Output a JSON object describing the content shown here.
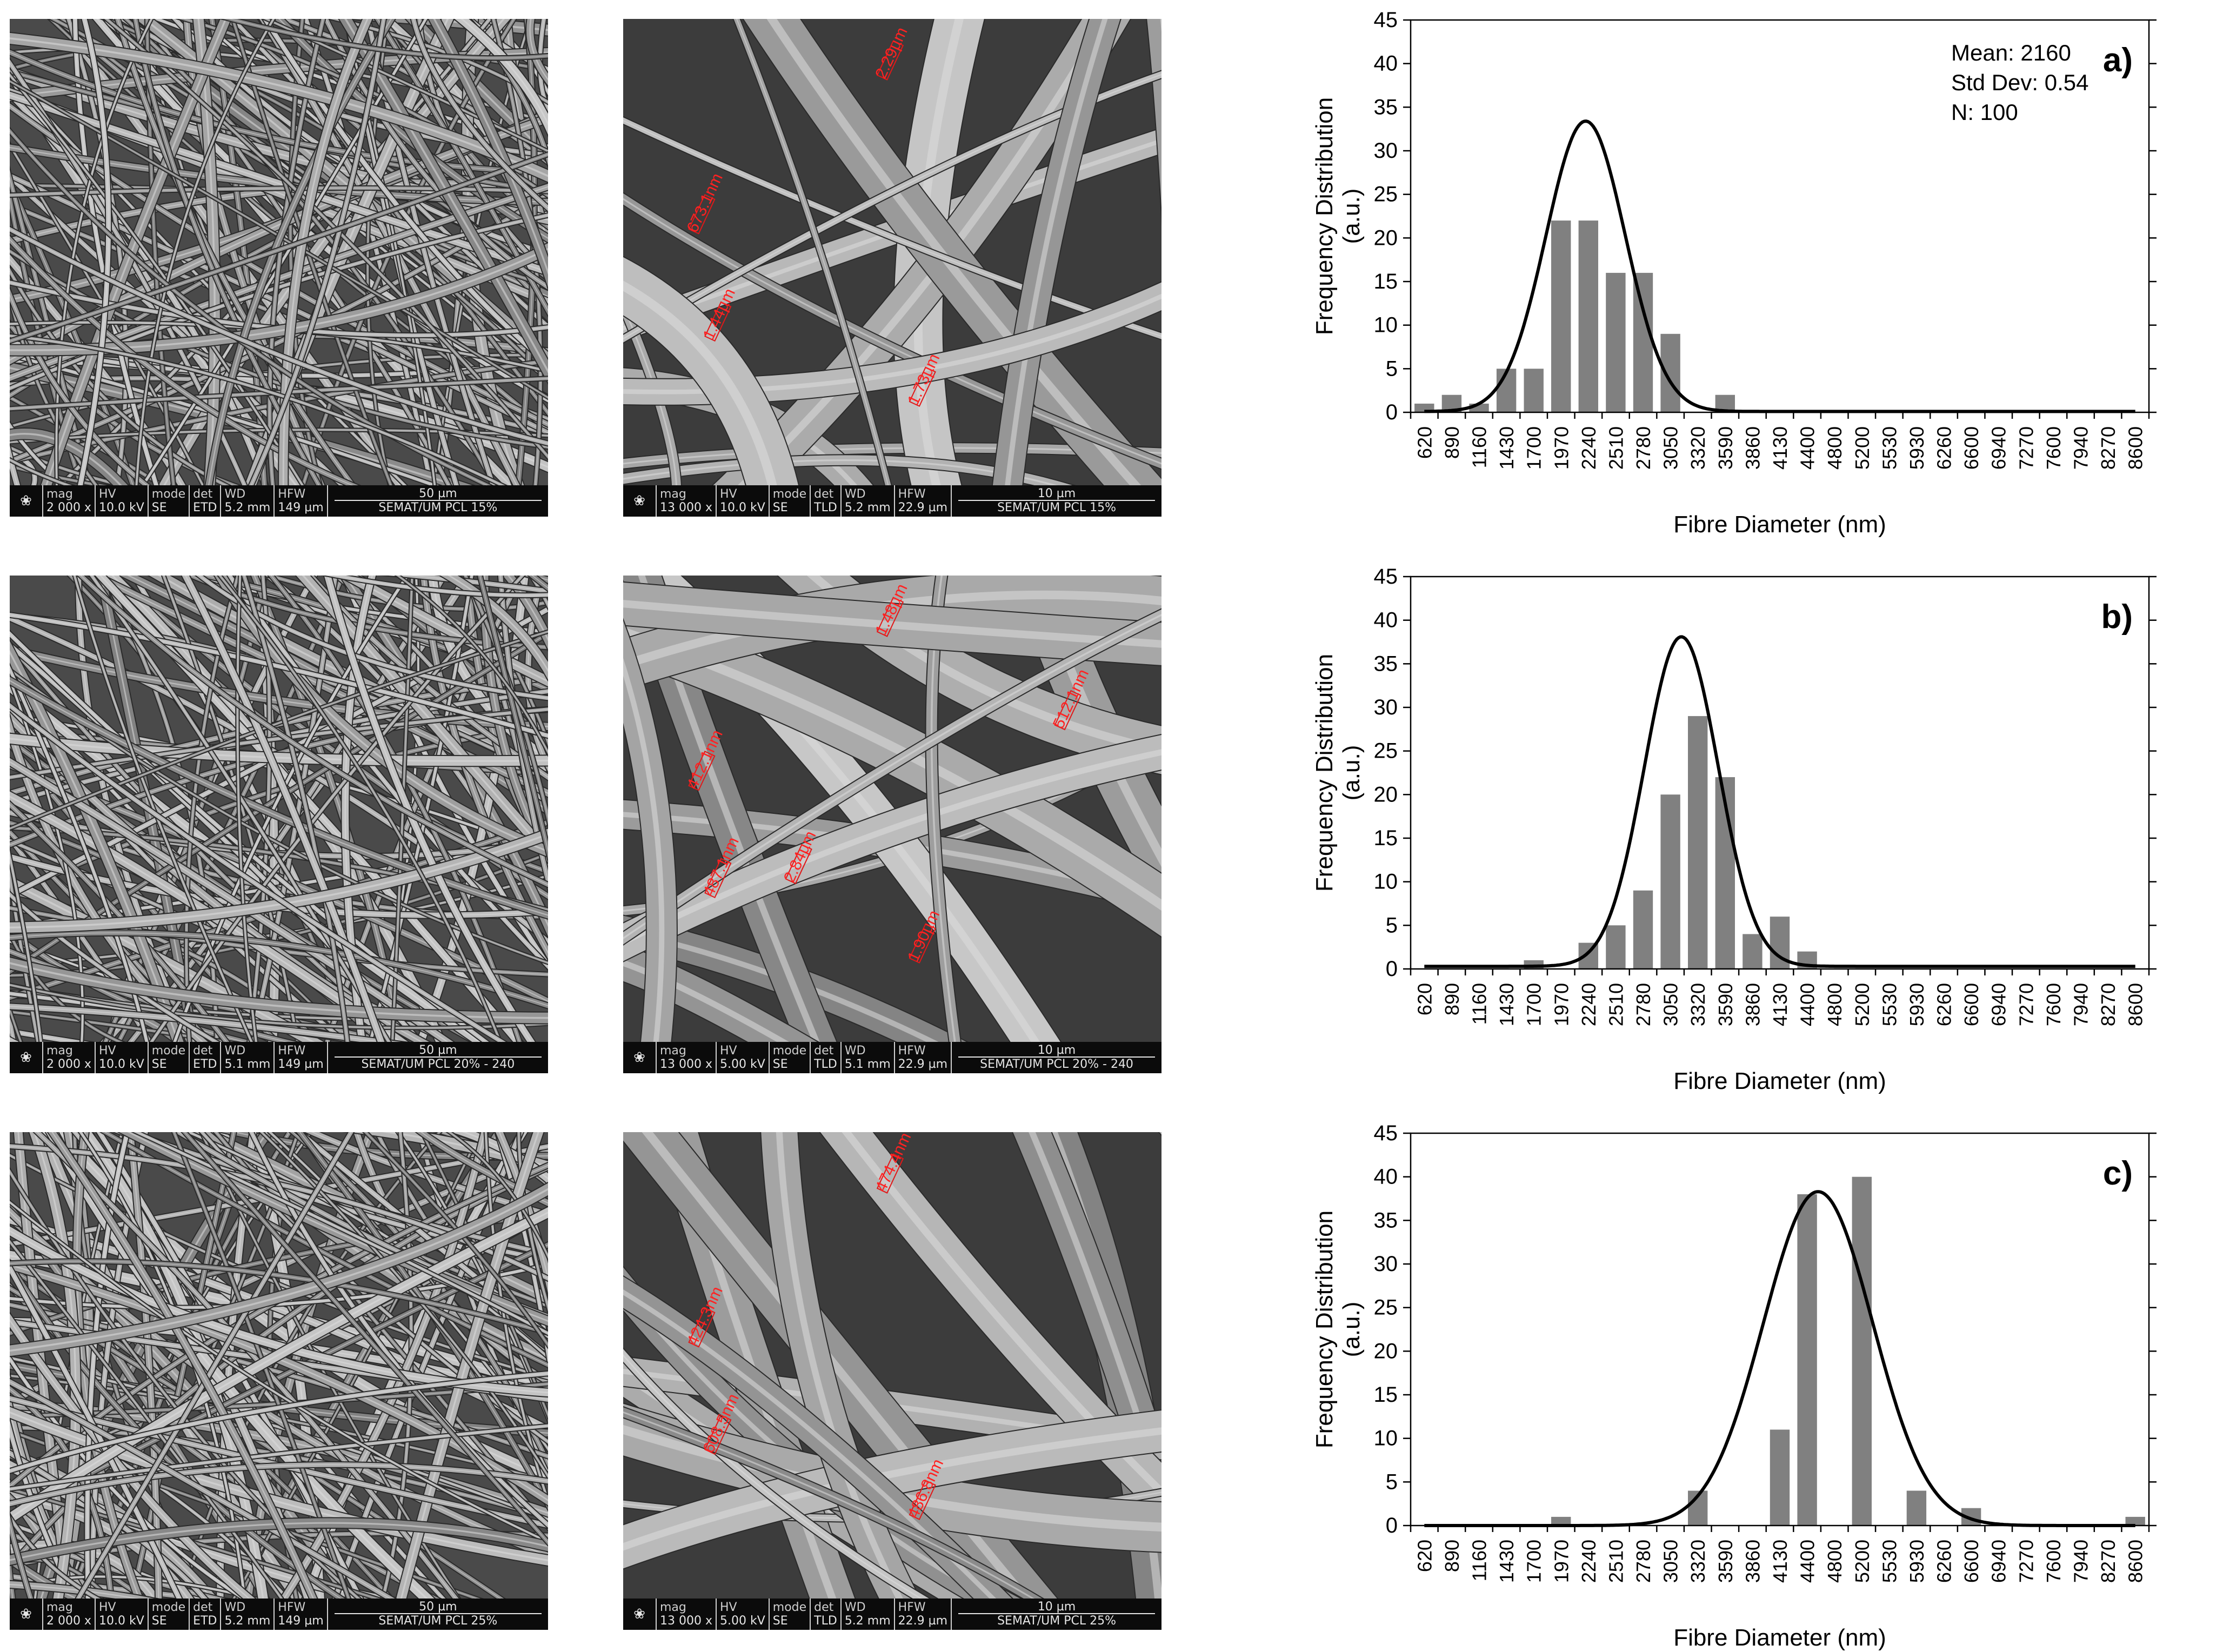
{
  "images": [
    {
      "mag": "2 000 x",
      "hv": "10.0 kV",
      "mode": "SE",
      "det": "ETD",
      "wd": "5.2 mm",
      "hfw": "149 µm",
      "scale": "50 µm",
      "label": "SEMAT/UM PCL 15%"
    },
    {
      "mag": "13 000 x",
      "hv": "10.0 kV",
      "mode": "SE",
      "det": "TLD",
      "wd": "5.2 mm",
      "hfw": "22.9 µm",
      "scale": "10 µm",
      "label": "SEMAT/UM PCL 15%",
      "measurements": [
        "2.29µm",
        "673.1nm",
        "1.44µm",
        "1.73µm"
      ]
    },
    {
      "mag": "2 000 x",
      "hv": "10.0 kV",
      "mode": "SE",
      "det": "ETD",
      "wd": "5.1 mm",
      "hfw": "149 µm",
      "scale": "50 µm",
      "label": "SEMAT/UM PCL 20% - 240"
    },
    {
      "mag": "13 000 x",
      "hv": "5.00 kV",
      "mode": "SE",
      "det": "TLD",
      "wd": "5.1 mm",
      "hfw": "22.9 µm",
      "scale": "10 µm",
      "label": "SEMAT/UM PCL 20% - 240",
      "measurements": [
        "1.48µm",
        "412.1nm",
        "487.1nm",
        "1.90µm",
        "512.1nm",
        "2.84µm"
      ]
    },
    {
      "mag": "2 000 x",
      "hv": "10.0 kV",
      "mode": "SE",
      "det": "ETD",
      "wd": "5.2 mm",
      "hfw": "149 µm",
      "scale": "50 µm",
      "label": "SEMAT/UM PCL 25%"
    },
    {
      "mag": "13 000 x",
      "hv": "5.00 kV",
      "mode": "SE",
      "det": "TLD",
      "wd": "5.2 mm",
      "hfw": "22.9 µm",
      "scale": "10 µm",
      "label": "SEMAT/UM PCL 25%",
      "measurements": [
        "474.4nm",
        "424.3nm",
        "608.5nm",
        "486.8nm"
      ]
    }
  ],
  "databar_labels": {
    "mag": "mag",
    "hv": "HV",
    "mode": "mode",
    "det": "det",
    "wd": "WD",
    "hfw": "HFW"
  },
  "chart_data": [
    {
      "type": "bar",
      "panel_label": "a)",
      "xlabel": "Fibre Diameter (nm)",
      "ylabel": "Frequency Distribution (a.u.)",
      "ylim": [
        0,
        45
      ],
      "yticks": [
        0,
        5,
        10,
        15,
        20,
        25,
        30,
        35,
        40,
        45
      ],
      "categories": [
        "620",
        "890",
        "1160",
        "1430",
        "1700",
        "1970",
        "2240",
        "2510",
        "2780",
        "3050",
        "3320",
        "3590",
        "3860",
        "4130",
        "4400",
        "4800",
        "5200",
        "5530",
        "5930",
        "6260",
        "6600",
        "6940",
        "7270",
        "7600",
        "7940",
        "8270",
        "8600"
      ],
      "values": [
        1,
        2,
        1,
        5,
        5,
        22,
        22,
        16,
        16,
        9,
        0,
        2,
        0,
        0,
        0,
        0,
        0,
        0,
        0,
        0,
        0,
        0,
        0,
        0,
        0,
        0,
        0
      ],
      "fit": {
        "peak_category_index": 5.9,
        "peak": 33.3,
        "sigma_categories": 1.45,
        "baseline": 0.1
      },
      "stats": [
        "Mean: 2160",
        "Std Dev: 0.54",
        "N: 100"
      ],
      "bar_color": "#808080",
      "line_color": "#000000"
    },
    {
      "type": "bar",
      "panel_label": "b)",
      "xlabel": "Fibre Diameter (nm)",
      "ylabel": "Frequency Distribution (a.u.)",
      "ylim": [
        0,
        45
      ],
      "yticks": [
        0,
        5,
        10,
        15,
        20,
        25,
        30,
        35,
        40,
        45
      ],
      "categories": [
        "620",
        "890",
        "1160",
        "1430",
        "1700",
        "1970",
        "2240",
        "2510",
        "2780",
        "3050",
        "3320",
        "3590",
        "3860",
        "4130",
        "4400",
        "4800",
        "5200",
        "5530",
        "5930",
        "6260",
        "6600",
        "6940",
        "7270",
        "7600",
        "7940",
        "8270",
        "8600"
      ],
      "values": [
        0,
        0,
        0,
        0,
        1,
        0,
        3,
        5,
        9,
        20,
        29,
        22,
        4,
        6,
        2,
        0,
        0,
        0,
        0,
        0,
        0,
        0,
        0,
        0,
        0,
        0,
        0
      ],
      "fit": {
        "peak_category_index": 9.4,
        "peak": 37.8,
        "sigma_categories": 1.35,
        "baseline": 0.3
      },
      "stats": [],
      "bar_color": "#808080",
      "line_color": "#000000"
    },
    {
      "type": "bar",
      "panel_label": "c)",
      "xlabel": "Fibre Diameter (nm)",
      "ylabel": "Frequency Distribution (a.u.)",
      "ylim": [
        0,
        45
      ],
      "yticks": [
        0,
        5,
        10,
        15,
        20,
        25,
        30,
        35,
        40,
        45
      ],
      "categories": [
        "620",
        "890",
        "1160",
        "1430",
        "1700",
        "1970",
        "2240",
        "2510",
        "2780",
        "3050",
        "3320",
        "3590",
        "3860",
        "4130",
        "4400",
        "4800",
        "5200",
        "5530",
        "5930",
        "6260",
        "6600",
        "6940",
        "7270",
        "7600",
        "7940",
        "8270",
        "8600"
      ],
      "values": [
        0,
        0,
        0,
        0,
        0,
        1,
        0,
        0,
        0,
        0,
        4,
        0,
        0,
        11,
        38,
        0,
        40,
        0,
        4,
        0,
        2,
        0,
        0,
        0,
        0,
        0,
        1
      ],
      "fit": {
        "peak_category_index": 14.4,
        "peak": 38.3,
        "sigma_categories": 2.0,
        "baseline": 0.0
      },
      "stats": [],
      "bar_color": "#808080",
      "line_color": "#000000"
    }
  ]
}
